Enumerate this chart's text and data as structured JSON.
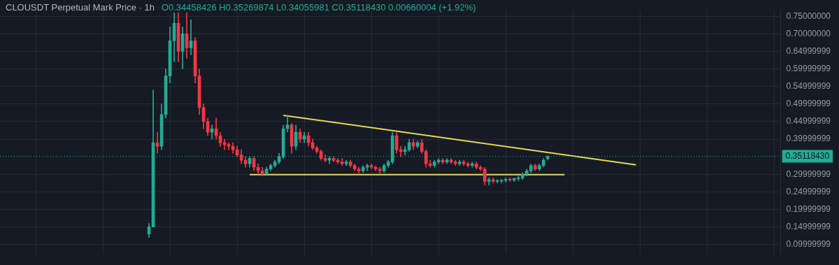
{
  "chart_data": {
    "type": "candlestick",
    "title": "CLOUSDT Perpetual Mark Price · 1h",
    "subtitle": "O0.34458426 H0.35269874 L0.34055981 C0.35118430 0.00660004 (+1.92%)",
    "categories": [
      null,
      null,
      null,
      null,
      null,
      null,
      null,
      null,
      null,
      null,
      null,
      null,
      null,
      null,
      null,
      null,
      null,
      null,
      null,
      null,
      null,
      null,
      null,
      null,
      null,
      null,
      null,
      null,
      null,
      null,
      null,
      null,
      null,
      null,
      null,
      null,
      null,
      null,
      null,
      null,
      null,
      null,
      null,
      null,
      null,
      null,
      null,
      null,
      null,
      null,
      null,
      null,
      null,
      null,
      null,
      null,
      null,
      null,
      null,
      null,
      null,
      null,
      null,
      null,
      null,
      null,
      null,
      null,
      null,
      null,
      null,
      null,
      null,
      null,
      null,
      null,
      null,
      null,
      null,
      null,
      null,
      null,
      null,
      null,
      null,
      null,
      null,
      null,
      null,
      null,
      null,
      null,
      null,
      null,
      null,
      null,
      null,
      null,
      null,
      null,
      null,
      null,
      null,
      null,
      null,
      null,
      null,
      null,
      null,
      null,
      null,
      null,
      null,
      null,
      null,
      null,
      null,
      null,
      null,
      null,
      null,
      null,
      null,
      null,
      null,
      null,
      null,
      null,
      null,
      null,
      null,
      null,
      null,
      null,
      null,
      null,
      null,
      null,
      null,
      null,
      null,
      null,
      null,
      null,
      null,
      null,
      null,
      null,
      null,
      null,
      null,
      null,
      null,
      null,
      null,
      null,
      null,
      null,
      null,
      null,
      null,
      null,
      null,
      null,
      null,
      null,
      null,
      null,
      null,
      null,
      null,
      null,
      null,
      null,
      null,
      null,
      null,
      null,
      null,
      null,
      null,
      null,
      null,
      null,
      null,
      null
    ],
    "ohlc": [
      null,
      null,
      null,
      null,
      null,
      null,
      null,
      null,
      null,
      null,
      null,
      null,
      null,
      null,
      null,
      null,
      null,
      null,
      null,
      null,
      null,
      null,
      null,
      null,
      null,
      null,
      null,
      null,
      null,
      null,
      null,
      null,
      null,
      null,
      null,
      [
        0.13,
        0.16,
        0.12,
        0.15
      ],
      [
        0.15,
        0.54,
        0.15,
        0.39
      ],
      [
        0.39,
        0.42,
        0.36,
        0.38
      ],
      [
        0.38,
        0.5,
        0.37,
        0.47
      ],
      [
        0.47,
        0.6,
        0.46,
        0.58
      ],
      [
        0.58,
        0.72,
        0.56,
        0.68
      ],
      [
        0.68,
        0.76,
        0.62,
        0.73
      ],
      [
        0.73,
        0.76,
        0.62,
        0.65
      ],
      [
        0.65,
        0.72,
        0.6,
        0.7
      ],
      [
        0.7,
        0.76,
        0.63,
        0.66
      ],
      [
        0.66,
        0.74,
        0.64,
        0.68
      ],
      [
        0.68,
        0.69,
        0.56,
        0.58
      ],
      [
        0.58,
        0.6,
        0.47,
        0.49
      ],
      [
        0.49,
        0.5,
        0.43,
        0.45
      ],
      [
        0.45,
        0.46,
        0.41,
        0.42
      ],
      [
        0.42,
        0.44,
        0.4,
        0.43
      ],
      [
        0.43,
        0.46,
        0.4,
        0.41
      ],
      [
        0.41,
        0.42,
        0.38,
        0.39
      ],
      [
        0.39,
        0.4,
        0.37,
        0.385
      ],
      [
        0.385,
        0.39,
        0.37,
        0.38
      ],
      [
        0.38,
        0.39,
        0.36,
        0.37
      ],
      [
        0.37,
        0.38,
        0.35,
        0.355
      ],
      [
        0.355,
        0.37,
        0.33,
        0.34
      ],
      [
        0.34,
        0.35,
        0.32,
        0.33
      ],
      [
        0.33,
        0.35,
        0.32,
        0.345
      ],
      [
        0.345,
        0.35,
        0.31,
        0.32
      ],
      [
        0.32,
        0.33,
        0.3,
        0.31
      ],
      [
        0.31,
        0.32,
        0.295,
        0.3
      ],
      [
        0.3,
        0.32,
        0.3,
        0.315
      ],
      [
        0.315,
        0.33,
        0.31,
        0.325
      ],
      [
        0.325,
        0.34,
        0.32,
        0.335
      ],
      [
        0.335,
        0.36,
        0.33,
        0.35
      ],
      [
        0.35,
        0.44,
        0.345,
        0.43
      ],
      [
        0.43,
        0.468,
        0.42,
        0.44
      ],
      [
        0.44,
        0.445,
        0.36,
        0.38
      ],
      [
        0.38,
        0.44,
        0.37,
        0.42
      ],
      [
        0.42,
        0.43,
        0.39,
        0.4
      ],
      [
        0.4,
        0.42,
        0.39,
        0.41
      ],
      [
        0.41,
        0.42,
        0.38,
        0.39
      ],
      [
        0.39,
        0.4,
        0.37,
        0.375
      ],
      [
        0.375,
        0.38,
        0.36,
        0.365
      ],
      [
        0.365,
        0.37,
        0.34,
        0.345
      ],
      [
        0.345,
        0.355,
        0.335,
        0.34
      ],
      [
        0.34,
        0.35,
        0.33,
        0.345
      ],
      [
        0.345,
        0.35,
        0.335,
        0.34
      ],
      [
        0.34,
        0.345,
        0.33,
        0.335
      ],
      [
        0.335,
        0.345,
        0.325,
        0.33
      ],
      [
        0.33,
        0.34,
        0.325,
        0.335
      ],
      [
        0.335,
        0.34,
        0.32,
        0.325
      ],
      [
        0.325,
        0.33,
        0.31,
        0.315
      ],
      [
        0.315,
        0.32,
        0.3,
        0.31
      ],
      [
        0.31,
        0.325,
        0.305,
        0.32
      ],
      [
        0.32,
        0.33,
        0.31,
        0.325
      ],
      [
        0.325,
        0.33,
        0.315,
        0.32
      ],
      [
        0.32,
        0.325,
        0.31,
        0.315
      ],
      [
        0.315,
        0.32,
        0.3,
        0.31
      ],
      [
        0.31,
        0.33,
        0.305,
        0.325
      ],
      [
        0.325,
        0.34,
        0.32,
        0.335
      ],
      [
        0.335,
        0.42,
        0.33,
        0.41
      ],
      [
        0.41,
        0.42,
        0.36,
        0.37
      ],
      [
        0.37,
        0.38,
        0.35,
        0.365
      ],
      [
        0.365,
        0.38,
        0.355,
        0.37
      ],
      [
        0.37,
        0.4,
        0.365,
        0.39
      ],
      [
        0.39,
        0.4,
        0.37,
        0.38
      ],
      [
        0.38,
        0.395,
        0.375,
        0.39
      ],
      [
        0.39,
        0.4,
        0.36,
        0.365
      ],
      [
        0.365,
        0.37,
        0.32,
        0.33
      ],
      [
        0.33,
        0.34,
        0.32,
        0.325
      ],
      [
        0.325,
        0.34,
        0.32,
        0.335
      ],
      [
        0.335,
        0.345,
        0.33,
        0.34
      ],
      [
        0.34,
        0.345,
        0.33,
        0.335
      ],
      [
        0.335,
        0.345,
        0.33,
        0.34
      ],
      [
        0.34,
        0.345,
        0.33,
        0.335
      ],
      [
        0.335,
        0.34,
        0.325,
        0.33
      ],
      [
        0.33,
        0.34,
        0.325,
        0.335
      ],
      [
        0.335,
        0.34,
        0.325,
        0.33
      ],
      [
        0.33,
        0.335,
        0.32,
        0.325
      ],
      [
        0.325,
        0.335,
        0.32,
        0.33
      ],
      [
        0.33,
        0.335,
        0.315,
        0.32
      ],
      [
        0.32,
        0.325,
        0.31,
        0.315
      ],
      [
        0.315,
        0.32,
        0.27,
        0.28
      ],
      [
        0.28,
        0.29,
        0.27,
        0.285
      ],
      [
        0.285,
        0.29,
        0.275,
        0.28
      ],
      [
        0.28,
        0.285,
        0.275,
        0.281
      ],
      [
        0.281,
        0.285,
        0.275,
        0.283
      ],
      [
        0.283,
        0.29,
        0.278,
        0.286
      ],
      [
        0.286,
        0.29,
        0.28,
        0.284
      ],
      [
        0.284,
        0.29,
        0.28,
        0.288
      ],
      [
        0.288,
        0.295,
        0.282,
        0.29
      ],
      [
        0.29,
        0.305,
        0.285,
        0.3
      ],
      [
        0.3,
        0.315,
        0.295,
        0.31
      ],
      [
        0.31,
        0.33,
        0.305,
        0.325
      ],
      [
        0.325,
        0.33,
        0.31,
        0.315
      ],
      [
        0.315,
        0.33,
        0.31,
        0.325
      ],
      [
        0.325,
        0.345,
        0.32,
        0.34
      ],
      [
        0.34458426,
        0.35269874,
        0.34055981,
        0.3511843
      ],
      null,
      null,
      null,
      null,
      null,
      null,
      null,
      null,
      null,
      null,
      null,
      null,
      null,
      null,
      null,
      null,
      null,
      null,
      null,
      null,
      null,
      null,
      null,
      null,
      null,
      null,
      null,
      null,
      null,
      null,
      null,
      null,
      null,
      null,
      null,
      null,
      null,
      null,
      null,
      null,
      null,
      null,
      null,
      null,
      null,
      null,
      null,
      null,
      null,
      null,
      null,
      null,
      null,
      null,
      null
    ],
    "colors": [
      null,
      null,
      null,
      null,
      null,
      null,
      null,
      null,
      null,
      null,
      null,
      null,
      null,
      null,
      null,
      null,
      null,
      null,
      null,
      null,
      null,
      null,
      null,
      null,
      null,
      null,
      null,
      null,
      null,
      null,
      null,
      null,
      null,
      null,
      null,
      "#22ab94",
      "#22ab94",
      "#f23645",
      "#22ab94",
      "#22ab94",
      "#22ab94",
      "#22ab94",
      "#f23645",
      "#22ab94",
      "#f23645",
      "#22ab94",
      "#f23645",
      "#f23645",
      "#f23645",
      "#f23645",
      "#22ab94",
      "#f23645",
      "#f23645",
      "#f23645",
      "#f23645",
      "#f23645",
      "#f23645",
      "#f23645",
      "#f23645",
      "#22ab94",
      "#f23645",
      "#f23645",
      "#f23645",
      "#22ab94",
      "#22ab94",
      "#22ab94",
      "#22ab94",
      "#22ab94",
      "#22ab94",
      "#f23645",
      "#22ab94",
      "#f23645",
      "#22ab94",
      "#f23645",
      "#f23645",
      "#f23645",
      "#f23645",
      "#f23645",
      "#22ab94",
      "#f23645",
      "#f23645",
      "#f23645",
      "#22ab94",
      "#f23645",
      "#f23645",
      "#f23645",
      "#22ab94",
      "#22ab94",
      "#f23645",
      "#f23645",
      "#f23645",
      "#22ab94",
      "#22ab94",
      "#22ab94",
      "#f23645",
      "#f23645",
      "#22ab94",
      "#22ab94",
      "#f23645",
      "#22ab94",
      "#f23645",
      "#f23645",
      "#f23645",
      "#22ab94",
      "#22ab94",
      "#f23645",
      "#22ab94",
      "#f23645",
      "#f23645",
      "#22ab94",
      "#f23645",
      "#f23645",
      "#22ab94",
      "#f23645",
      "#f23645",
      "#f23645",
      "#22ab94",
      "#f23645",
      "#22ab94",
      "#22ab94",
      "#22ab94",
      "#f23645",
      "#22ab94",
      "#22ab94",
      "#22ab94",
      "#22ab94",
      "#22ab94",
      "#f23645",
      "#22ab94",
      "#22ab94",
      "#22ab94",
      null,
      null,
      null,
      null,
      null,
      null,
      null,
      null,
      null,
      null,
      null,
      null,
      null,
      null,
      null,
      null,
      null,
      null,
      null,
      null,
      null,
      null,
      null,
      null,
      null,
      null,
      null,
      null,
      null,
      null,
      null,
      null,
      null,
      null,
      null,
      null,
      null,
      null,
      null,
      null,
      null,
      null,
      null,
      null,
      null,
      null,
      null,
      null,
      null,
      null,
      null,
      null,
      null,
      null,
      null
    ],
    "series": [
      {
        "type": "line",
        "color": "#e6d94a",
        "values": [
          null,
          null,
          null,
          null,
          null,
          null,
          null,
          null,
          null,
          null,
          null,
          null,
          null,
          null,
          null,
          null,
          null,
          null,
          null,
          null,
          null,
          null,
          null,
          null,
          null,
          null,
          null,
          null,
          null,
          null,
          null,
          null,
          null,
          null,
          null,
          null,
          null,
          null,
          null,
          null,
          null,
          null,
          null,
          null,
          null,
          null,
          null,
          null,
          null,
          null,
          null,
          null,
          null,
          null,
          null,
          null,
          null,
          null,
          null,
          null,
          null,
          null,
          null,
          null,
          null,
          null,
          null,
          0.468,
          null,
          null,
          null,
          null,
          null,
          null,
          null,
          null,
          null,
          null,
          null,
          null,
          null,
          null,
          null,
          null,
          null,
          null,
          null,
          null,
          null,
          null,
          null,
          null,
          null,
          null,
          null,
          null,
          null,
          null,
          null,
          null,
          null,
          null,
          null,
          null,
          null,
          null,
          null,
          null,
          null,
          null,
          null,
          null,
          null,
          null,
          null,
          null,
          null,
          null,
          null,
          null,
          null,
          null,
          null,
          null,
          null,
          null,
          null,
          null,
          null,
          null,
          null,
          null,
          null,
          null,
          null,
          null,
          null,
          null,
          null,
          null,
          null,
          null,
          null,
          null,
          null,
          null,
          null,
          null,
          null,
          null,
          null,
          0.327,
          null,
          null,
          null,
          null,
          null,
          null,
          null,
          null,
          null,
          null,
          null,
          null,
          null,
          null,
          null,
          null,
          null,
          null,
          null,
          null,
          null,
          null,
          null,
          null,
          null,
          null,
          null,
          null,
          null,
          null,
          null,
          null,
          null,
          null
        ]
      },
      {
        "type": "line",
        "color": "#e6d94a",
        "values": [
          null,
          null,
          null,
          null,
          null,
          null,
          null,
          null,
          null,
          null,
          null,
          null,
          null,
          null,
          null,
          null,
          null,
          null,
          null,
          null,
          null,
          null,
          null,
          null,
          null,
          null,
          null,
          null,
          null,
          null,
          null,
          null,
          null,
          null,
          null,
          null,
          null,
          null,
          null,
          null,
          null,
          null,
          null,
          null,
          null,
          null,
          null,
          null,
          null,
          null,
          null,
          null,
          null,
          null,
          null,
          null,
          null,
          null,
          null,
          0.299,
          null,
          null,
          null,
          null,
          null,
          null,
          null,
          null,
          null,
          null,
          null,
          null,
          null,
          null,
          null,
          null,
          null,
          null,
          null,
          null,
          null,
          null,
          null,
          null,
          null,
          null,
          null,
          null,
          null,
          null,
          null,
          null,
          null,
          null,
          null,
          null,
          null,
          null,
          null,
          null,
          null,
          null,
          null,
          null,
          null,
          null,
          null,
          null,
          null,
          null,
          null,
          null,
          null,
          null,
          null,
          null,
          null,
          null,
          null,
          null,
          null,
          null,
          null,
          null,
          null,
          null,
          null,
          null,
          null,
          null,
          null,
          null,
          null,
          null,
          0.299,
          null,
          null,
          null,
          null,
          null,
          null,
          null,
          null,
          null,
          null,
          null,
          null,
          null,
          null,
          null,
          null,
          null,
          null,
          null,
          null,
          null,
          null,
          null,
          null,
          null,
          null,
          null,
          null,
          null,
          null,
          null,
          null,
          null,
          null,
          null,
          null,
          null,
          null,
          null,
          null,
          null,
          null,
          null,
          null,
          null,
          null,
          null,
          null,
          null,
          null,
          null
        ]
      }
    ],
    "ylim": [
      0.072,
      0.766
    ],
    "yticks": [
      {
        "value": 0.09999999,
        "label": "0.09999999"
      },
      {
        "value": 0.14999999,
        "label": "0.14999999"
      },
      {
        "value": 0.19999999,
        "label": "0.19999999"
      },
      {
        "value": 0.24999999,
        "label": "0.24999999"
      },
      {
        "value": 0.29999999,
        "label": "0.29999999"
      },
      {
        "value": 0.39999999,
        "label": "0.39999999"
      },
      {
        "value": 0.44999999,
        "label": "0.44999999"
      },
      {
        "value": 0.49999999,
        "label": "0.49999999"
      },
      {
        "value": 0.54999999,
        "label": "0.54999999"
      },
      {
        "value": 0.59999999,
        "label": "0.59999999"
      },
      {
        "value": 0.64999999,
        "label": "0.64999999"
      },
      {
        "value": 0.7,
        "label": "0.70000000"
      },
      {
        "value": 0.75,
        "label": "0.75000000"
      }
    ],
    "ref_lines": [
      {
        "axis": "y",
        "value": 0.3511843,
        "label": "0.35118430",
        "color": "#22ab94",
        "line_style": "dotted"
      }
    ],
    "grid": true,
    "tick_labels": "y"
  }
}
